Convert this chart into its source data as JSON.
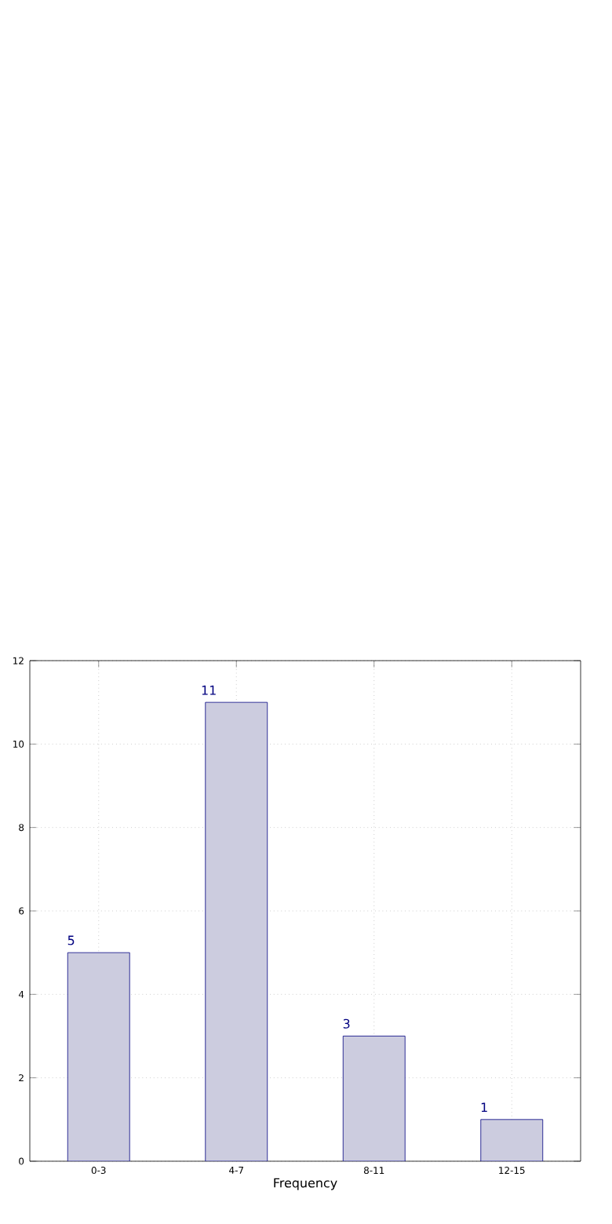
{
  "chart_data": {
    "type": "bar",
    "xlabel": "Frequency",
    "categories": [
      "0-3",
      "4-7",
      "8-11",
      "12-15"
    ],
    "values": [
      5,
      11,
      3,
      1
    ],
    "value_labels": [
      "5",
      "11",
      "3",
      "1"
    ],
    "color": "#ccccdf",
    "ylim": [
      0,
      12
    ],
    "yticks": [
      0,
      2,
      4,
      6,
      8,
      10,
      12
    ],
    "grid": true
  }
}
